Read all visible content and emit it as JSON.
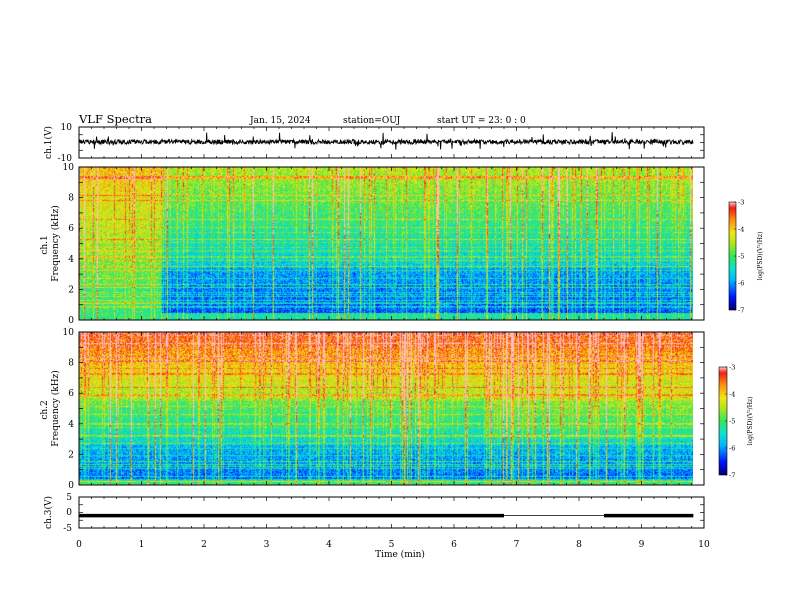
{
  "header": {
    "title": "VLF Spectra",
    "date": "Jan. 15, 2024",
    "station": "station=OUJ",
    "start": "start  UT  =   23: 0  : 0"
  },
  "chart_data": [
    {
      "type": "line",
      "name": "ch1-waveform",
      "ylabel": "ch.1(V)",
      "ylim": [
        -10,
        10
      ],
      "yticks": [
        "10",
        "-10"
      ],
      "xlim": [
        0,
        9.83
      ],
      "baseline": 0.4,
      "noise_amplitude": 1.5,
      "spike_amplitude": 2.6
    },
    {
      "type": "heatmap",
      "name": "ch1-spectrogram",
      "ylabel": "ch.1 Frequency (kHz)",
      "ylabel_lines": [
        "ch.1",
        "Frequency  (kHz)"
      ],
      "ylim": [
        0,
        10
      ],
      "yticks": [
        "0",
        "2",
        "4",
        "6",
        "8",
        "10"
      ],
      "xlim": [
        0,
        9.83
      ],
      "colorbar": {
        "label": "log(PSD)(V²/Hz)",
        "range": [
          -7,
          -3
        ],
        "ticks": [
          "-3",
          "-4",
          "-5",
          "-6",
          "-7"
        ]
      }
    },
    {
      "type": "heatmap",
      "name": "ch2-spectrogram",
      "ylabel": "ch.2 Frequency (kHz)",
      "ylabel_lines": [
        "ch.2",
        "Frequency  (kHz)"
      ],
      "ylim": [
        0,
        10
      ],
      "yticks": [
        "0",
        "2",
        "4",
        "6",
        "8",
        "10"
      ],
      "xlim": [
        0,
        9.83
      ],
      "colorbar": {
        "label": "log(PSD)(V²/Hz)",
        "range": [
          -7,
          -3
        ],
        "ticks": [
          "-3",
          "-4",
          "-5",
          "-6",
          "-7"
        ]
      }
    },
    {
      "type": "line",
      "name": "ch3-level",
      "ylabel": "ch.3(V)",
      "ylim": [
        -5,
        5
      ],
      "yticks": [
        "5",
        "0",
        "-5"
      ],
      "xlim": [
        0,
        9.83
      ],
      "value": -1.0,
      "gaps": [
        [
          6.8,
          8.4
        ]
      ]
    }
  ],
  "xaxis": {
    "label": "Time  (min)",
    "range": [
      0,
      10
    ],
    "ticks": [
      "0",
      "1",
      "2",
      "3",
      "4",
      "5",
      "6",
      "7",
      "8",
      "9",
      "10"
    ]
  },
  "colors": {
    "scale": [
      "#00007a",
      "#0018ff",
      "#00b4ff",
      "#10e0d0",
      "#35e65a",
      "#b4e61e",
      "#f0e614",
      "#ff8c14",
      "#f01e14",
      "#ffbebe"
    ]
  }
}
